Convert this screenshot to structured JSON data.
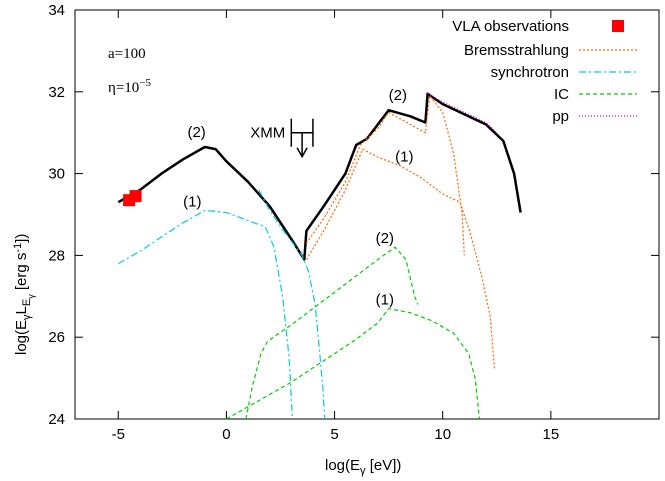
{
  "chart_data": {
    "type": "line",
    "xlabel": "log(E",
    "xlabel_sub": "γ",
    "xlabel_tail": " [eV])",
    "ylabel_parts": [
      "log(E",
      "γ",
      "L",
      "E",
      "γ",
      " [erg s",
      "-1",
      "])"
    ],
    "xlim": [
      -7,
      20
    ],
    "ylim": [
      24,
      34
    ],
    "x_ticks": [
      -5,
      0,
      5,
      10,
      15
    ],
    "x_tick_labels": [
      "-5",
      "0",
      "5",
      "10",
      "15"
    ],
    "y_ticks": [
      24,
      26,
      28,
      30,
      32,
      34
    ],
    "y_tick_labels": [
      "24",
      "26",
      "28",
      "30",
      "32",
      "34"
    ],
    "params": [
      {
        "text": "a=100"
      },
      {
        "base": "η=10",
        "sup": "−5"
      }
    ],
    "legend_position": "top-right",
    "legend": [
      {
        "label": "VLA observations",
        "color": "#ff0000",
        "style": "square"
      },
      {
        "label": "Bremsstrahlung",
        "color": "#ff6600",
        "style": "dotted"
      },
      {
        "label": "synchrotron",
        "color": "#00ccdd",
        "style": "dashdot"
      },
      {
        "label": "IC",
        "color": "#00cc00",
        "style": "dashed"
      },
      {
        "label": "pp",
        "color": "#cc00cc",
        "style": "dotted"
      }
    ],
    "xmm_label": "XMM",
    "annotations": [
      {
        "text": "(2)",
        "x": -1.8,
        "y": 30.9
      },
      {
        "text": "(1)",
        "x": -2.0,
        "y": 29.2
      },
      {
        "text": "(2)",
        "x": 7.5,
        "y": 31.8
      },
      {
        "text": "(1)",
        "x": 7.8,
        "y": 30.3
      },
      {
        "text": "(2)",
        "x": 6.9,
        "y": 28.3
      },
      {
        "text": "(1)",
        "x": 6.9,
        "y": 26.8
      }
    ],
    "xmm_limit": {
      "x_range": [
        3.0,
        4.0
      ],
      "y": 31.0
    },
    "series": [
      {
        "key": "total",
        "color": "#000000",
        "dash": "",
        "width": 2.5,
        "points": [
          [
            -5,
            29.3
          ],
          [
            -4,
            29.6
          ],
          [
            -3,
            30.0
          ],
          [
            -2,
            30.35
          ],
          [
            -1,
            30.65
          ],
          [
            -0.5,
            30.6
          ],
          [
            0,
            30.3
          ],
          [
            1,
            29.8
          ],
          [
            2,
            29.2
          ],
          [
            3,
            28.4
          ],
          [
            3.6,
            27.9
          ],
          [
            3.7,
            28.6
          ],
          [
            4.5,
            29.2
          ],
          [
            5.5,
            30.0
          ],
          [
            6,
            30.7
          ],
          [
            6.5,
            30.85
          ],
          [
            7,
            31.2
          ],
          [
            7.5,
            31.55
          ],
          [
            8.5,
            31.4
          ],
          [
            9.2,
            31.25
          ],
          [
            9.3,
            31.95
          ],
          [
            10,
            31.7
          ],
          [
            11,
            31.45
          ],
          [
            12,
            31.2
          ],
          [
            12.8,
            30.8
          ],
          [
            13.3,
            30.0
          ],
          [
            13.6,
            29.05
          ]
        ]
      },
      {
        "key": "sync1",
        "color": "#00ccdd",
        "dash": "7,3,2,3",
        "width": 1.2,
        "points": [
          [
            -5,
            27.8
          ],
          [
            -4,
            28.1
          ],
          [
            -3,
            28.45
          ],
          [
            -2,
            28.8
          ],
          [
            -1,
            29.1
          ],
          [
            0,
            29.05
          ],
          [
            1,
            28.85
          ],
          [
            1.8,
            28.7
          ],
          [
            2.2,
            28.2
          ],
          [
            2.6,
            27.0
          ],
          [
            2.9,
            25.5
          ],
          [
            3.05,
            24.0
          ]
        ]
      },
      {
        "key": "sync2",
        "color": "#00ccdd",
        "dash": "7,3,2,3",
        "width": 1.2,
        "points": [
          [
            1.5,
            29.6
          ],
          [
            2,
            29.1
          ],
          [
            2.5,
            28.7
          ],
          [
            3,
            28.35
          ],
          [
            3.5,
            28.0
          ],
          [
            3.8,
            27.6
          ],
          [
            4.1,
            26.8
          ],
          [
            4.3,
            25.7
          ],
          [
            4.45,
            24.8
          ],
          [
            4.55,
            24.0
          ]
        ]
      },
      {
        "key": "ic2",
        "color": "#00cc00",
        "dash": "4,3",
        "width": 1.2,
        "points": [
          [
            0.9,
            24.0
          ],
          [
            1.2,
            24.8
          ],
          [
            1.6,
            25.6
          ],
          [
            1.9,
            25.9
          ],
          [
            3,
            26.3
          ],
          [
            4,
            26.7
          ],
          [
            5,
            27.1
          ],
          [
            6,
            27.5
          ],
          [
            7,
            27.9
          ],
          [
            7.8,
            28.2
          ],
          [
            8.3,
            27.9
          ],
          [
            8.7,
            27.0
          ],
          [
            8.85,
            26.8
          ]
        ]
      },
      {
        "key": "ic1",
        "color": "#00cc00",
        "dash": "4,3",
        "width": 1.2,
        "points": [
          [
            0,
            24.0
          ],
          [
            1,
            24.3
          ],
          [
            2,
            24.6
          ],
          [
            3,
            24.9
          ],
          [
            4,
            25.25
          ],
          [
            5,
            25.6
          ],
          [
            6,
            25.95
          ],
          [
            7,
            26.35
          ],
          [
            7.5,
            26.7
          ],
          [
            8.5,
            26.6
          ],
          [
            9.5,
            26.4
          ],
          [
            10.5,
            26.1
          ],
          [
            11.2,
            25.6
          ],
          [
            11.5,
            25.0
          ],
          [
            11.7,
            24.0
          ]
        ]
      },
      {
        "key": "brems2",
        "color": "#ff6600",
        "dash": "2,2",
        "width": 1.2,
        "points": [
          [
            3.7,
            28.3
          ],
          [
            4.5,
            28.9
          ],
          [
            5.5,
            29.8
          ],
          [
            6.2,
            30.7
          ],
          [
            7,
            31.1
          ],
          [
            7.5,
            31.5
          ],
          [
            8.5,
            31.2
          ],
          [
            9.2,
            31.0
          ],
          [
            9.4,
            31.9
          ],
          [
            10,
            31.5
          ],
          [
            10.5,
            30.5
          ],
          [
            10.9,
            29.0
          ],
          [
            11.0,
            28.0
          ]
        ]
      },
      {
        "key": "brems1",
        "color": "#ff6600",
        "dash": "2,2",
        "width": 1.2,
        "points": [
          [
            3.7,
            27.9
          ],
          [
            4.5,
            28.6
          ],
          [
            5.5,
            29.6
          ],
          [
            6.3,
            30.6
          ],
          [
            7,
            30.4
          ],
          [
            8,
            30.2
          ],
          [
            9,
            29.9
          ],
          [
            10,
            29.5
          ],
          [
            10.8,
            29.3
          ],
          [
            11.3,
            28.5
          ],
          [
            11.8,
            27.5
          ],
          [
            12.2,
            26.5
          ],
          [
            12.4,
            25.2
          ]
        ]
      },
      {
        "key": "pp",
        "color": "#cc00cc",
        "dash": "1,2",
        "width": 1.2,
        "points": [
          [
            9.3,
            31.95
          ],
          [
            10,
            31.75
          ],
          [
            11,
            31.5
          ],
          [
            12,
            31.25
          ],
          [
            12.5,
            31.0
          ]
        ]
      }
    ],
    "vla_points": [
      [
        -4.5,
        29.35
      ],
      [
        -4.2,
        29.45
      ]
    ]
  }
}
